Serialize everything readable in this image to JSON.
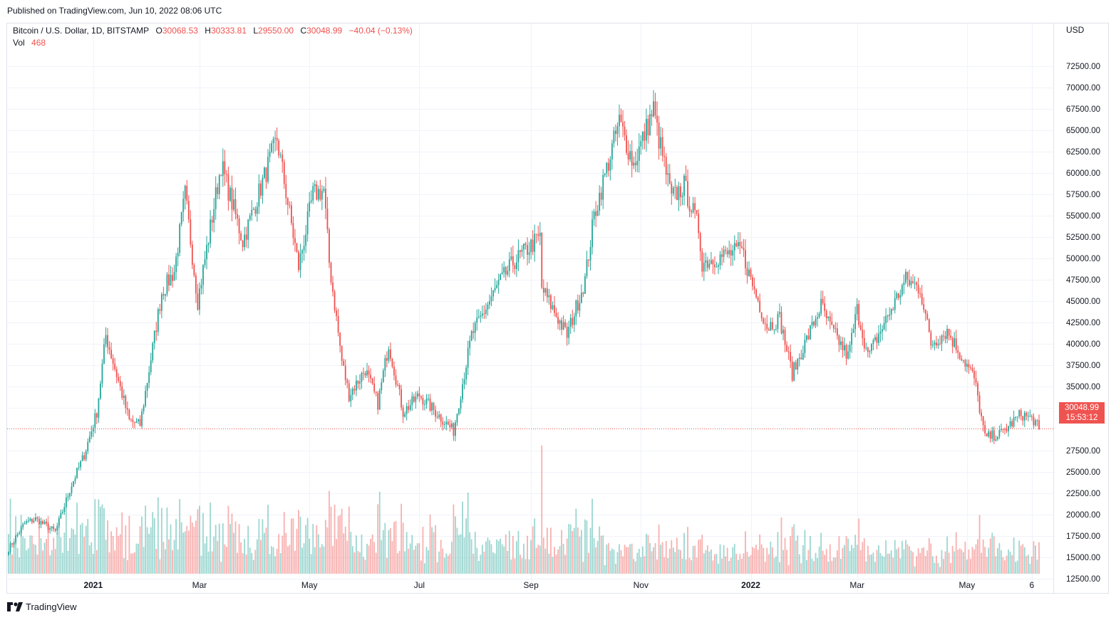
{
  "header": {
    "published": "Published on TradingView.com, Jun 10, 2022 08:06 UTC"
  },
  "legend": {
    "symbol": "Bitcoin / U.S. Dollar, 1D, BITSTAMP",
    "open_label": "O",
    "open": "30068.53",
    "high_label": "H",
    "high": "30333.81",
    "low_label": "L",
    "low": "29550.00",
    "close_label": "C",
    "close": "30048.99",
    "change": "−40.04 (−0.13%)",
    "vol_label": "Vol",
    "vol": "468"
  },
  "axis": {
    "currency": "USD"
  },
  "price_badge": {
    "price": "30048.99",
    "countdown": "15:53:12"
  },
  "brand": {
    "name": "TradingView",
    "icon": "tradingview-logo-icon"
  },
  "colors": {
    "up": "#26a69a",
    "down": "#ef5350",
    "grid": "#f0f3fa",
    "text": "#131722"
  },
  "chart_data": {
    "type": "candlestick",
    "symbol": "Bitcoin / U.S. Dollar",
    "interval": "1D",
    "exchange": "BITSTAMP",
    "ylim": [
      10000,
      73500
    ],
    "y_ticks": [
      12500,
      15000,
      17500,
      20000,
      22500,
      25000,
      27500,
      32500,
      35000,
      37500,
      40000,
      42500,
      45000,
      47500,
      50000,
      52500,
      55000,
      57500,
      60000,
      62500,
      65000,
      67500,
      70000,
      72500
    ],
    "y_tick_labels": [
      "12500.00",
      "15000.00",
      "17500.00",
      "20000.00",
      "22500.00",
      "25000.00",
      "27500.00",
      "32500.00",
      "35000.00",
      "37500.00",
      "40000.00",
      "42500.00",
      "45000.00",
      "47500.00",
      "50000.00",
      "52500.00",
      "55000.00",
      "57500.00",
      "60000.00",
      "62500.00",
      "65000.00",
      "67500.00",
      "70000.00",
      "72500.00"
    ],
    "x_ticks": [
      {
        "date": "2021-01-01",
        "label": "2021",
        "bold": true
      },
      {
        "date": "2021-03-01",
        "label": "Mar",
        "bold": false
      },
      {
        "date": "2021-05-01",
        "label": "May",
        "bold": false
      },
      {
        "date": "2021-07-01",
        "label": "Jul",
        "bold": false
      },
      {
        "date": "2021-09-01",
        "label": "Sep",
        "bold": false
      },
      {
        "date": "2021-11-01",
        "label": "Nov",
        "bold": false
      },
      {
        "date": "2022-01-01",
        "label": "2022",
        "bold": true
      },
      {
        "date": "2022-03-01",
        "label": "Mar",
        "bold": false
      },
      {
        "date": "2022-05-01",
        "label": "May",
        "bold": false
      },
      {
        "date": "2022-06-06",
        "label": "6",
        "bold": false
      }
    ],
    "date_range": [
      "2020-11-15",
      "2022-06-10"
    ],
    "last_price": 30048.99,
    "price_anchors": [
      [
        "2020-11-15",
        16000
      ],
      [
        "2020-11-24",
        19000
      ],
      [
        "2020-11-30",
        19500
      ],
      [
        "2020-12-11",
        18000
      ],
      [
        "2020-12-20",
        23500
      ],
      [
        "2020-12-27",
        27000
      ],
      [
        "2021-01-03",
        32000
      ],
      [
        "2021-01-08",
        41000
      ],
      [
        "2021-01-21",
        31000
      ],
      [
        "2021-01-27",
        30500
      ],
      [
        "2021-02-08",
        46000
      ],
      [
        "2021-02-15",
        48500
      ],
      [
        "2021-02-21",
        57500
      ],
      [
        "2021-02-28",
        45000
      ],
      [
        "2021-03-13",
        61000
      ],
      [
        "2021-03-25",
        52000
      ],
      [
        "2021-04-13",
        64000
      ],
      [
        "2021-04-25",
        49000
      ],
      [
        "2021-05-03",
        57500
      ],
      [
        "2021-05-09",
        58000
      ],
      [
        "2021-05-12",
        49500
      ],
      [
        "2021-05-19",
        38000
      ],
      [
        "2021-05-23",
        34000
      ],
      [
        "2021-06-01",
        37000
      ],
      [
        "2021-06-08",
        33000
      ],
      [
        "2021-06-14",
        40000
      ],
      [
        "2021-06-22",
        32000
      ],
      [
        "2021-07-01",
        34000
      ],
      [
        "2021-07-20",
        29800
      ],
      [
        "2021-07-30",
        41000
      ],
      [
        "2021-08-14",
        47000
      ],
      [
        "2021-08-22",
        49500
      ],
      [
        "2021-09-06",
        52500
      ],
      [
        "2021-09-07",
        46500
      ],
      [
        "2021-09-21",
        41000
      ],
      [
        "2021-10-01",
        47500
      ],
      [
        "2021-10-06",
        55000
      ],
      [
        "2021-10-20",
        66000
      ],
      [
        "2021-10-28",
        61000
      ],
      [
        "2021-11-08",
        67500
      ],
      [
        "2021-11-10",
        65000
      ],
      [
        "2021-11-18",
        57000
      ],
      [
        "2021-11-25",
        58500
      ],
      [
        "2021-12-03",
        53500
      ],
      [
        "2021-12-05",
        49500
      ],
      [
        "2021-12-27",
        51000
      ],
      [
        "2022-01-01",
        47500
      ],
      [
        "2022-01-10",
        42000
      ],
      [
        "2022-01-17",
        43000
      ],
      [
        "2022-01-24",
        36500
      ],
      [
        "2022-02-09",
        44500
      ],
      [
        "2022-02-14",
        42000
      ],
      [
        "2022-02-24",
        38500
      ],
      [
        "2022-03-01",
        44000
      ],
      [
        "2022-03-07",
        38500
      ],
      [
        "2022-03-28",
        47500
      ],
      [
        "2022-04-05",
        46500
      ],
      [
        "2022-04-11",
        40000
      ],
      [
        "2022-04-20",
        41500
      ],
      [
        "2022-05-05",
        36000
      ],
      [
        "2022-05-11",
        29000
      ],
      [
        "2022-05-20",
        29500
      ],
      [
        "2022-05-31",
        31800
      ],
      [
        "2022-06-07",
        31100
      ],
      [
        "2022-06-10",
        30049
      ]
    ],
    "volume_note": "relative daily volume shown as coloured bars along the bottom",
    "volume_labels": [
      "12500.00",
      "15000.00",
      "17500.00"
    ]
  }
}
